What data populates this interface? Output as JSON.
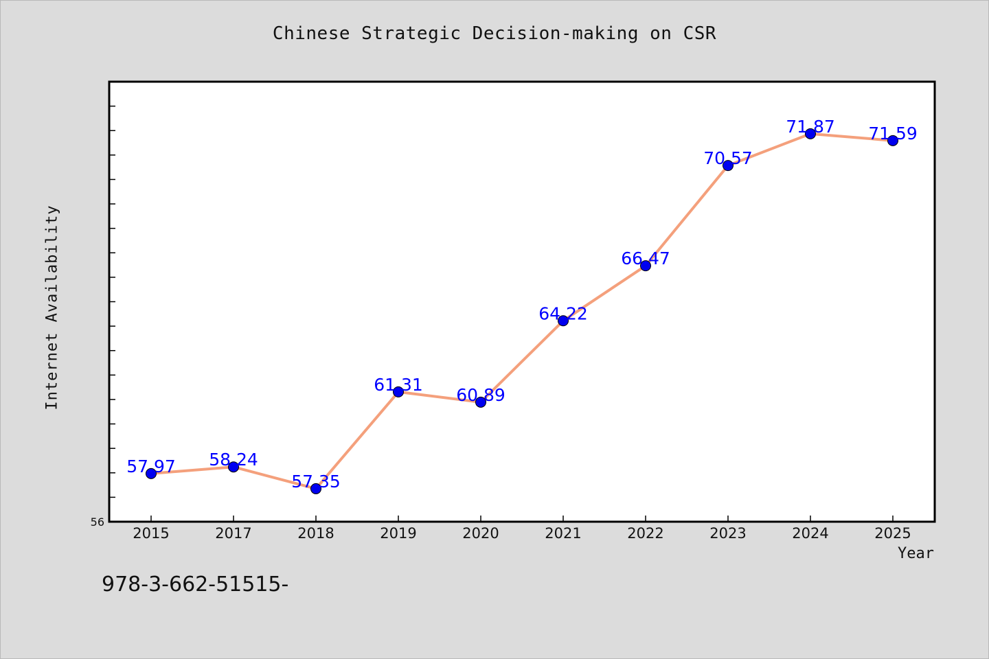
{
  "colors": {
    "background": "#dcdcdc",
    "plot_background": "#ffffff",
    "line": "#f4a07c",
    "marker": "#0000ee",
    "data_label": "#0000ff"
  },
  "footer": {
    "code": "978-3-662-51515-"
  },
  "chart_data": {
    "type": "line",
    "title": "Chinese Strategic Decision-making on CSR",
    "xlabel": "Year",
    "ylabel": "Internet Availability",
    "categories": [
      "2015",
      "2017",
      "2018",
      "2019",
      "2020",
      "2021",
      "2022",
      "2023",
      "2024",
      "2025"
    ],
    "values": [
      57.97,
      58.24,
      57.35,
      61.31,
      60.89,
      64.22,
      66.47,
      70.57,
      71.87,
      71.59
    ],
    "data_labels": [
      "57.97",
      "58.24",
      "57.35",
      "61.31",
      "60.89",
      "64.22",
      "66.47",
      "70.57",
      "71.87",
      "71.59"
    ],
    "ylim": [
      56,
      74
    ],
    "y_ticks_labeled": [
      "56"
    ],
    "y_minor_tick_step": 1,
    "grid": false,
    "legend": "none",
    "markers": true
  }
}
